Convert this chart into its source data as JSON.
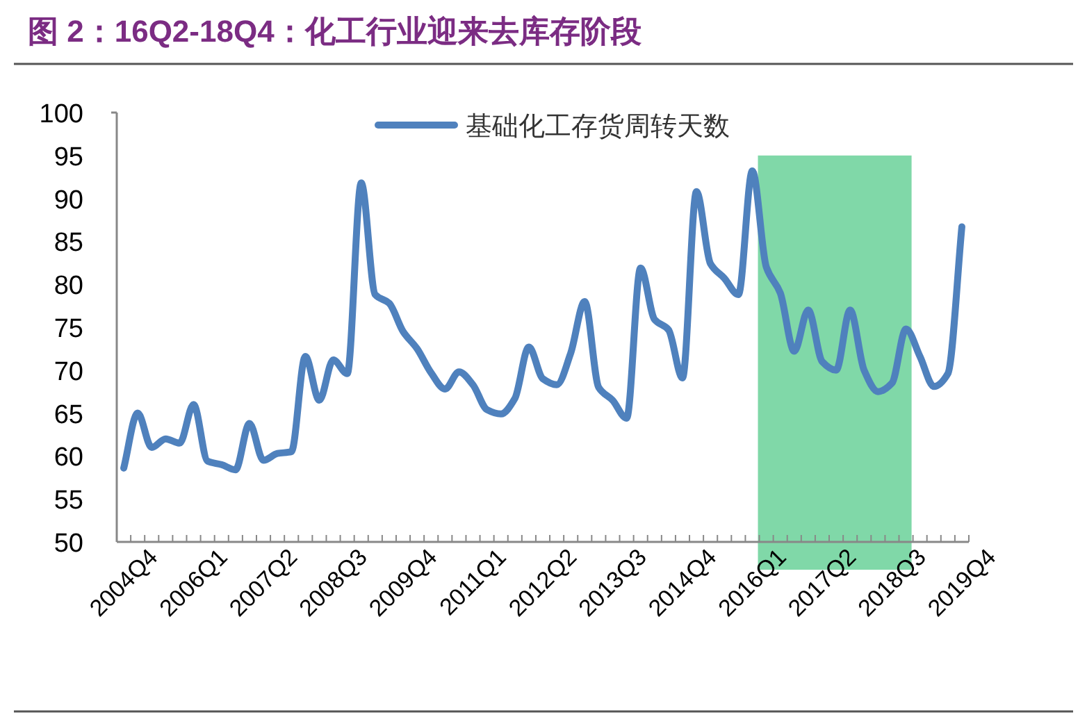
{
  "chart_data": {
    "type": "line",
    "title": "图 2：16Q2-18Q4：化工行业迎来去库存阶段",
    "categories": [
      "2004Q4",
      null,
      null,
      null,
      null,
      "2006Q1",
      null,
      null,
      null,
      null,
      "2007Q2",
      null,
      null,
      null,
      null,
      "2008Q3",
      null,
      null,
      null,
      null,
      "2009Q4",
      null,
      null,
      null,
      null,
      "2011Q1",
      null,
      null,
      null,
      null,
      "2012Q2",
      null,
      null,
      null,
      null,
      "2013Q3",
      null,
      null,
      null,
      null,
      "2014Q4",
      null,
      null,
      null,
      null,
      "2016Q1",
      null,
      null,
      null,
      null,
      "2017Q2",
      null,
      null,
      null,
      null,
      "2018Q3",
      null,
      null,
      null,
      null,
      "2019Q4"
    ],
    "series": [
      {
        "name": "基础化工存货周转天数",
        "color": "#4f81bd",
        "values": [
          58.6,
          65,
          61,
          62,
          61.5,
          66,
          59.4,
          59,
          58.4,
          63.8,
          59.5,
          60.3,
          60.5,
          71.6,
          66.5,
          71.2,
          69.6,
          91.8,
          78.8,
          77.8,
          74.5,
          72.5,
          69.7,
          67.8,
          69.8,
          68.3,
          65.4,
          64.9,
          66.7,
          72.7,
          69,
          68.3,
          72,
          78,
          68,
          66.5,
          64.4,
          81.9,
          75.9,
          74.7,
          69.1,
          90.8,
          82.4,
          80.7,
          78.8,
          93.2,
          82,
          79,
          72.2,
          77,
          71,
          70,
          77,
          70,
          67.5,
          68.5,
          74.8,
          71.6,
          68.1,
          69.6,
          86.7
        ]
      }
    ],
    "ylim": [
      50,
      100
    ],
    "yticks": [
      50,
      55,
      60,
      65,
      70,
      75,
      80,
      85,
      90,
      95,
      100
    ],
    "grid": false,
    "legend": "top",
    "marker": "none",
    "line_style": "solid"
  }
}
